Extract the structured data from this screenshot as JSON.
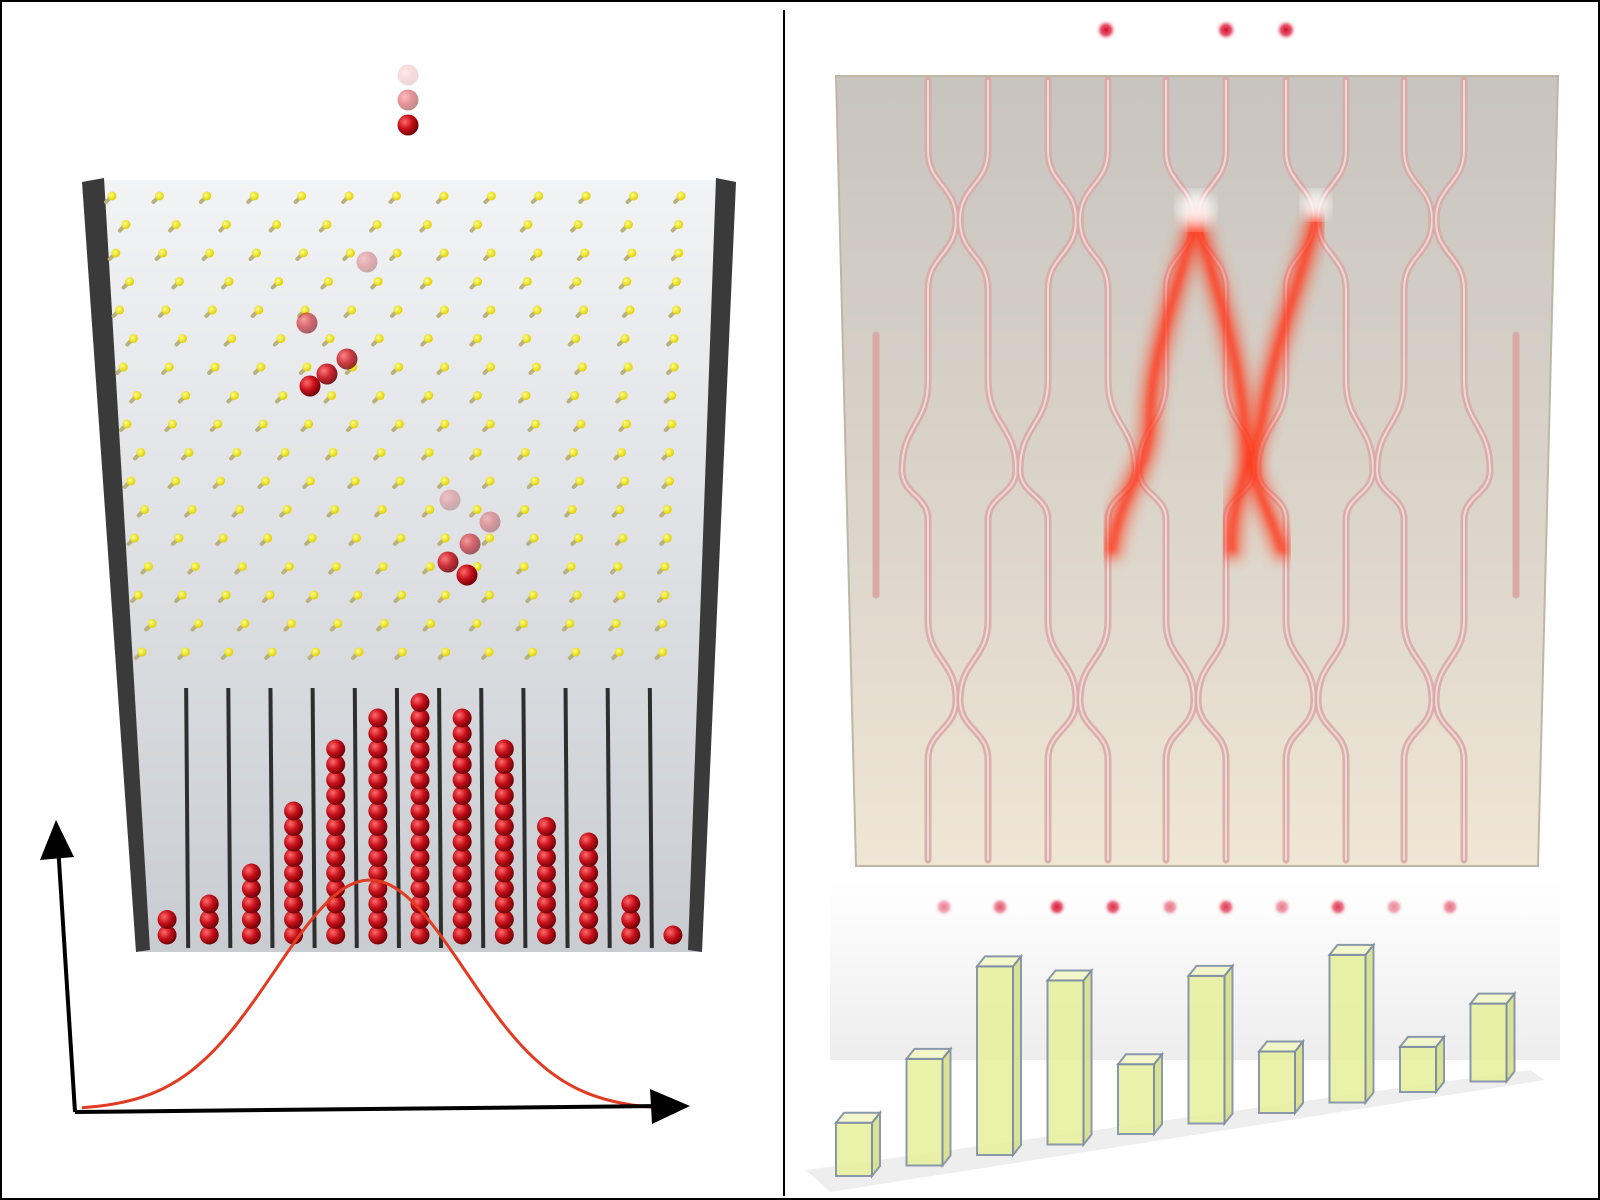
{
  "left_panel": {
    "galton_board": {
      "peg_color": "#f2e600",
      "wall_color": "#3a3a3a",
      "ball_color": "#c8101a",
      "bin_ball_counts": [
        2,
        3,
        5,
        9,
        13,
        15,
        16,
        15,
        13,
        8,
        7,
        3,
        1
      ],
      "falling_balls_top": 3,
      "falling_balls_cluster_a": 4,
      "falling_balls_cluster_b": 5
    },
    "distribution_curve": {
      "color": "#e23b22",
      "shape": "gaussian"
    },
    "axes": {
      "color": "#000000",
      "arrow_x": "right",
      "arrow_y": "up"
    }
  },
  "right_panel": {
    "waveguide_chip": {
      "glass_color": "#cfc8bd",
      "waveguide_color": "#d9a9a6",
      "light_color": "#ff3a1c",
      "input_photons": 3,
      "output_photons": 10
    },
    "histogram": {
      "bar_color": "#e8f0a0",
      "bar_edge_color": "#7f8fa4",
      "values": [
        0.26,
        0.52,
        0.92,
        0.8,
        0.34,
        0.72,
        0.3,
        0.72,
        0.22,
        0.38
      ]
    }
  },
  "divider": {
    "color": "#000000"
  }
}
